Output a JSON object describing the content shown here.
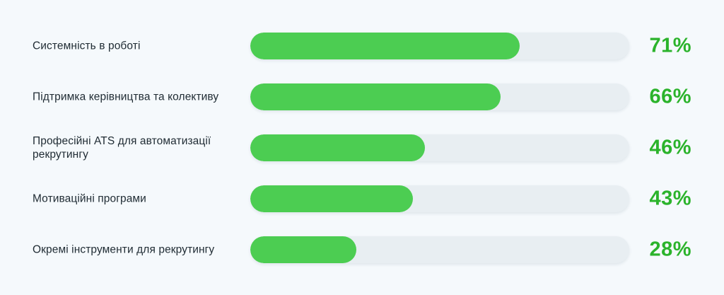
{
  "chart_data": {
    "type": "bar",
    "orientation": "horizontal",
    "categories": [
      "Системність в роботі",
      "Підтримка керівництва та колективу",
      "Професійні ATS для автоматизації рекрутингу",
      "Мотиваційні програми",
      "Окремі інструменти для рекрутингу"
    ],
    "values": [
      71,
      66,
      46,
      43,
      28
    ],
    "value_labels": [
      "71%",
      "66%",
      "46%",
      "43%",
      "28%"
    ],
    "xlim": [
      0,
      100
    ],
    "title": "",
    "xlabel": "",
    "ylabel": "",
    "grid": false,
    "colors": {
      "fill": "#4ccd52",
      "track": "#e8eef2",
      "value_text": "#2bb32b",
      "label_text": "#1f2b33",
      "background": "#f5f9fc"
    }
  }
}
